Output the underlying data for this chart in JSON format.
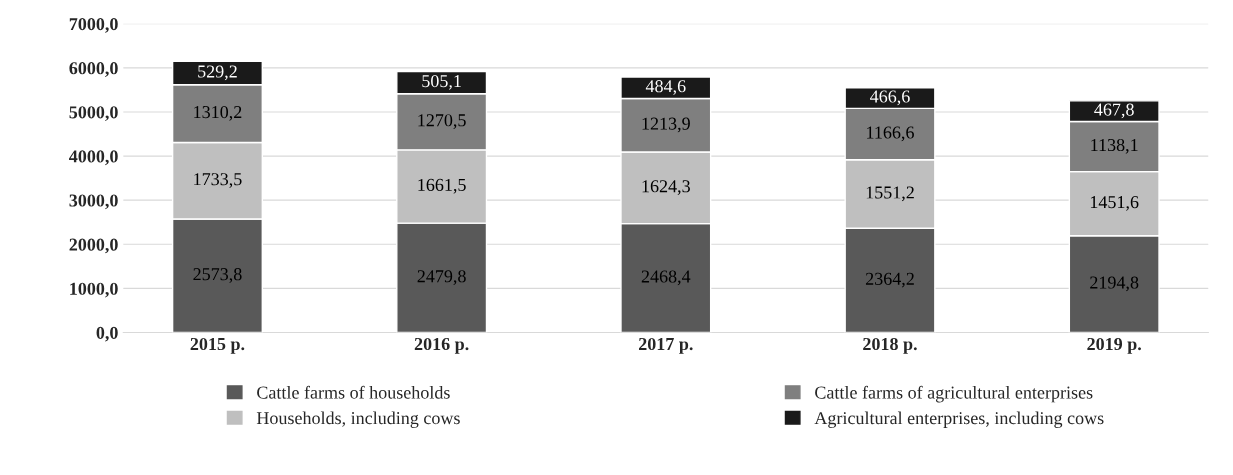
{
  "chart_data": {
    "type": "bar",
    "stacked": true,
    "categories": [
      "2015 p.",
      "2016 p.",
      "2017 p.",
      "2018 p.",
      "2019 p."
    ],
    "series": [
      {
        "name": "Cattle farms of households",
        "color": "#595959",
        "values": [
          2573.8,
          2479.8,
          2468.4,
          2364.2,
          2194.8
        ],
        "value_labels": [
          "2573,8",
          "2479,8",
          "2468,4",
          "2364,2",
          "2194,8"
        ]
      },
      {
        "name": "Households, including cows",
        "color": "#bfbfbf",
        "values": [
          1733.5,
          1661.5,
          1624.3,
          1551.2,
          1451.6
        ],
        "value_labels": [
          "1733,5",
          "1661,5",
          "1624,3",
          "1551,2",
          "1451,6"
        ]
      },
      {
        "name": "Cattle farms of agricultural enterprises",
        "color": "#7f7f7f",
        "values": [
          1310.2,
          1270.5,
          1213.9,
          1166.6,
          1138.1
        ],
        "value_labels": [
          "1310,2",
          "1270,5",
          "1213,9",
          "1166,6",
          "1138,1"
        ]
      },
      {
        "name": "Agricultural enterprises, including cows",
        "color": "#1a1a1a",
        "values": [
          529.2,
          505.1,
          484.6,
          466.6,
          467.8
        ],
        "value_labels": [
          "529,2",
          "505,1",
          "484,6",
          "466,6",
          "467,8"
        ]
      }
    ],
    "ylim": [
      0,
      7000
    ],
    "yticks": [
      {
        "value": 0,
        "label": "0,0"
      },
      {
        "value": 1000,
        "label": "1000,0"
      },
      {
        "value": 2000,
        "label": "2000,0"
      },
      {
        "value": 3000,
        "label": "3000,0"
      },
      {
        "value": 4000,
        "label": "4000,0"
      },
      {
        "value": 5000,
        "label": "5000,0"
      },
      {
        "value": 6000,
        "label": "6000,0"
      },
      {
        "value": 7000,
        "label": "7000,0"
      }
    ],
    "grid": "y",
    "legend": "bottom"
  }
}
